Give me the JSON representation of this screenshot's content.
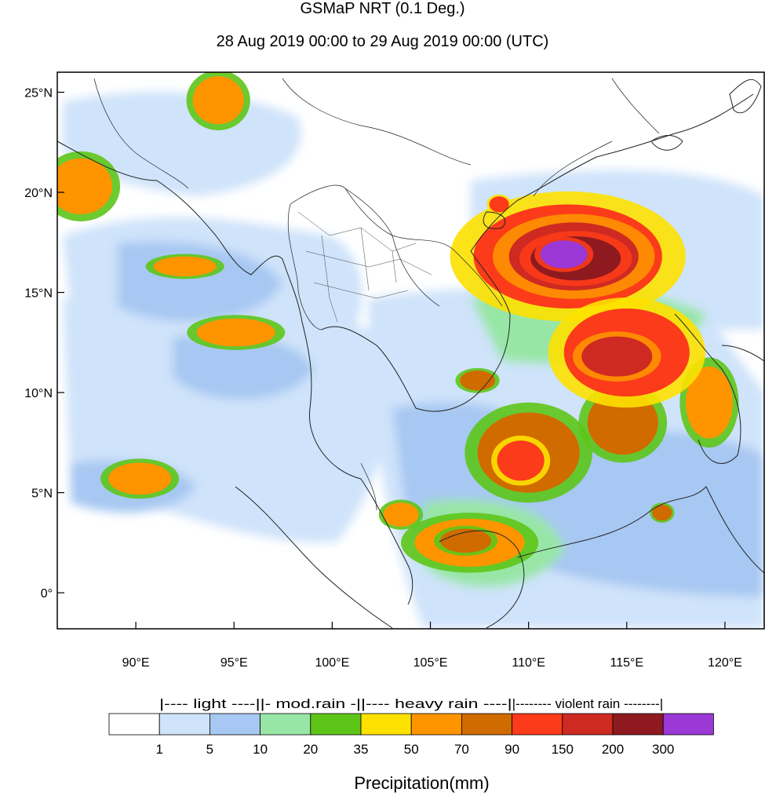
{
  "map": {
    "title": "GSMaP NRT (0.1 Deg.)",
    "subtitle": "28 Aug 2019 00:00 to 29 Aug 2019 00:00 (UTC)",
    "lon_range": [
      86,
      122
    ],
    "lat_range": [
      -1.8,
      26
    ],
    "lat_ticks": [
      {
        "value": 25,
        "label": "25°N"
      },
      {
        "value": 20,
        "label": "20°N"
      },
      {
        "value": 15,
        "label": "15°N"
      },
      {
        "value": 10,
        "label": "10°N"
      },
      {
        "value": 5,
        "label": "5°N"
      },
      {
        "value": 0,
        "label": "0°"
      }
    ],
    "lon_ticks": [
      {
        "value": 90,
        "label": "90°E"
      },
      {
        "value": 95,
        "label": "95°E"
      },
      {
        "value": 100,
        "label": "100°E"
      },
      {
        "value": 105,
        "label": "105°E"
      },
      {
        "value": 110,
        "label": "110°E"
      },
      {
        "value": 115,
        "label": "115°E"
      },
      {
        "value": 120,
        "label": "120°E"
      }
    ],
    "rain_cells": [
      {
        "lon": 112,
        "lat": 16.8,
        "rx": 4.8,
        "ry": 2.6,
        "mm": 90
      },
      {
        "lon": 112.3,
        "lat": 16.8,
        "rx": 3.3,
        "ry": 1.7,
        "mm": 150
      },
      {
        "lon": 112.4,
        "lat": 16.7,
        "rx": 2.3,
        "ry": 1.1,
        "mm": 200
      },
      {
        "lon": 111.8,
        "lat": 16.9,
        "rx": 1.2,
        "ry": 0.7,
        "mm": 300
      },
      {
        "lon": 115,
        "lat": 12,
        "rx": 3.2,
        "ry": 2.2,
        "mm": 90
      },
      {
        "lon": 114.5,
        "lat": 11.8,
        "rx": 1.8,
        "ry": 1.0,
        "mm": 150
      },
      {
        "lon": 110,
        "lat": 7,
        "rx": 2.6,
        "ry": 2.0,
        "mm": 70
      },
      {
        "lon": 109.6,
        "lat": 6.6,
        "rx": 1.2,
        "ry": 1.0,
        "mm": 90
      },
      {
        "lon": 114.8,
        "lat": 8.5,
        "rx": 1.8,
        "ry": 1.6,
        "mm": 70
      },
      {
        "lon": 107,
        "lat": 2.5,
        "rx": 2.8,
        "ry": 1.2,
        "mm": 50
      },
      {
        "lon": 106.8,
        "lat": 2.6,
        "rx": 1.3,
        "ry": 0.6,
        "mm": 70
      },
      {
        "lon": 90.2,
        "lat": 5.7,
        "rx": 1.6,
        "ry": 0.8,
        "mm": 50
      },
      {
        "lon": 87.2,
        "lat": 20.3,
        "rx": 1.6,
        "ry": 1.4,
        "mm": 50
      },
      {
        "lon": 94.2,
        "lat": 24.6,
        "rx": 1.3,
        "ry": 1.2,
        "mm": 50
      },
      {
        "lon": 95.1,
        "lat": 13.0,
        "rx": 2.0,
        "ry": 0.7,
        "mm": 50
      },
      {
        "lon": 92.5,
        "lat": 16.3,
        "rx": 1.6,
        "ry": 0.5,
        "mm": 50
      },
      {
        "lon": 107.4,
        "lat": 10.6,
        "rx": 0.9,
        "ry": 0.5,
        "mm": 70
      },
      {
        "lon": 103.5,
        "lat": 3.9,
        "rx": 0.9,
        "ry": 0.6,
        "mm": 50
      },
      {
        "lon": 116.8,
        "lat": 4.0,
        "rx": 0.5,
        "ry": 0.4,
        "mm": 70
      },
      {
        "lon": 119.2,
        "lat": 9.5,
        "rx": 1.2,
        "ry": 1.8,
        "mm": 50
      },
      {
        "lon": 108.5,
        "lat": 19.4,
        "rx": 0.5,
        "ry": 0.4,
        "mm": 90
      }
    ]
  },
  "legend": {
    "categories": [
      {
        "label": "|---- light ----|",
        "from": 1,
        "to": 10
      },
      {
        "label": "|- mod.rain -|",
        "from": 10,
        "to": 35
      },
      {
        "label": "|---- heavy rain ----|",
        "from": 35,
        "to": 90
      },
      {
        "label": "|-------- violent rain --------|",
        "from": 90,
        "to": 300
      }
    ],
    "boundaries": [
      "1",
      "5",
      "10",
      "20",
      "35",
      "50",
      "70",
      "90",
      "150",
      "200",
      "300"
    ],
    "colors": [
      "#ffffff",
      "#cfe3fa",
      "#a7c8f2",
      "#98e6a6",
      "#5dc518",
      "#fde100",
      "#fd9400",
      "#d06b00",
      "#fc3b1a",
      "#ce2a22",
      "#8e1a1f",
      "#9b38d6"
    ],
    "unit_label": "Precipitation(mm)"
  }
}
